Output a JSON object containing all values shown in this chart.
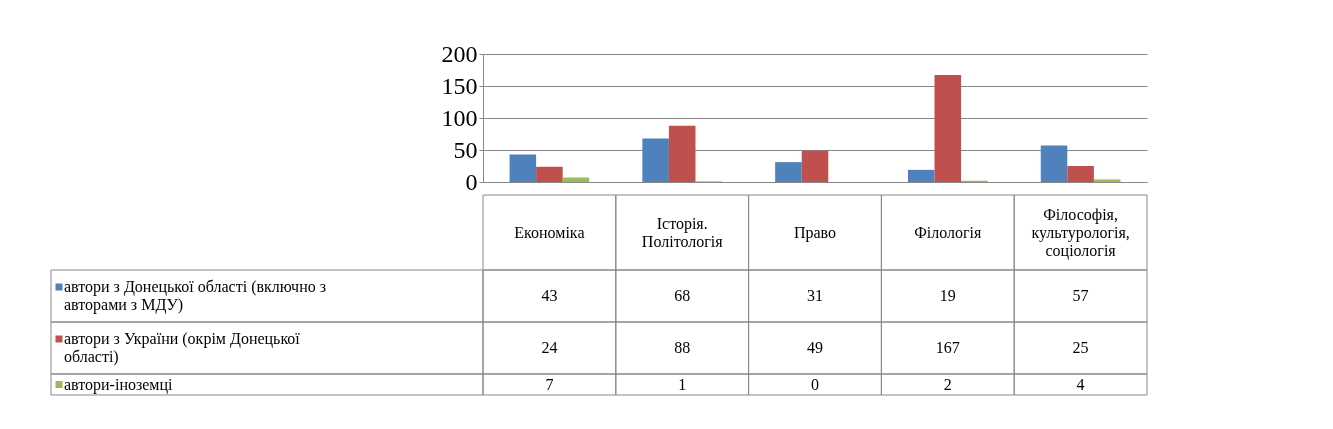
{
  "chart_data": {
    "type": "bar",
    "categories": [
      "Економіка",
      "Історія. Політологія",
      "Право",
      "Філологія",
      "Філософія, культурологія, соціологія"
    ],
    "series": [
      {
        "name": "автори з Донецької області (включно з авторами з МДУ)",
        "color": "#4f81bd",
        "values": [
          43,
          68,
          31,
          19,
          57
        ]
      },
      {
        "name": "автори з України (окрім Донецької області)",
        "color": "#c0504d",
        "values": [
          24,
          88,
          49,
          167,
          25
        ]
      },
      {
        "name": "автори-іноземці",
        "color": "#9bbb59",
        "values": [
          7,
          1,
          0,
          2,
          4
        ]
      }
    ],
    "ylim": [
      0,
      200
    ],
    "yticks": [
      0,
      50,
      100,
      150,
      200
    ],
    "grid": "y",
    "legend": "bottom left",
    "data_labels": true
  }
}
